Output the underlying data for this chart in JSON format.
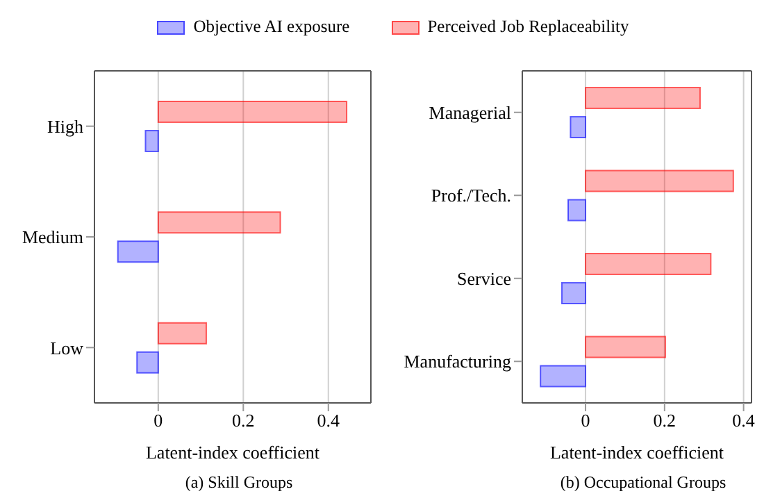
{
  "chart_data": [
    {
      "type": "bar",
      "orientation": "horizontal",
      "title": "(a) Skill Groups",
      "xlabel": "Latent-index coefficient",
      "categories": [
        "High",
        "Medium",
        "Low"
      ],
      "legend": "top",
      "grid": "x",
      "xlim": [
        -0.15,
        0.5
      ],
      "xticks": [
        0,
        0.2,
        0.4
      ],
      "series": [
        {
          "name": "Objective AI exposure",
          "color": "#0000ff",
          "values": [
            -0.03,
            -0.095,
            -0.05
          ]
        },
        {
          "name": "Perceived Job Replaceability",
          "color": "#ff0000",
          "values": [
            0.443,
            0.287,
            0.113
          ]
        }
      ]
    },
    {
      "type": "bar",
      "orientation": "horizontal",
      "title": "(b) Occupational Groups",
      "xlabel": "Latent-index coefficient",
      "categories": [
        "Managerial",
        "Prof./Tech.",
        "Service",
        "Manufacturing"
      ],
      "grid": "x",
      "xlim": [
        -0.16,
        0.42
      ],
      "xticks": [
        0,
        0.2,
        0.4
      ],
      "series": [
        {
          "color": "#0000ff",
          "values": [
            -0.038,
            -0.044,
            -0.06,
            -0.114
          ]
        },
        {
          "color": "#ff0000",
          "values": [
            0.29,
            0.374,
            0.317,
            0.202
          ]
        }
      ]
    }
  ]
}
